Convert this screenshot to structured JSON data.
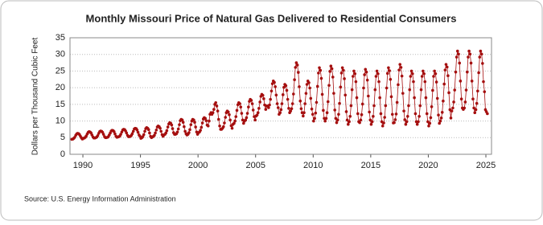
{
  "chart_data": {
    "type": "line",
    "title": "Monthly Missouri Price of Natural Gas Delivered to Residential Consumers",
    "y_label": "Dollars per Thousand Cubic Feet",
    "source": "Source: U.S. Energy Information Administration",
    "xlim": [
      1988.88,
      2025.49
    ],
    "xticks": [
      1990,
      1995,
      2000,
      2005,
      2010,
      2015,
      2020,
      2025
    ],
    "ylim": [
      0,
      35
    ],
    "yticks": [
      0,
      5,
      10,
      15,
      20,
      25,
      30,
      35
    ],
    "grid": true,
    "series": [
      {
        "name": "Missouri residential price",
        "color": "#a50f0f",
        "x": [
          1989.04,
          1989.13,
          1989.21,
          1989.29,
          1989.38,
          1989.46,
          1989.54,
          1989.63,
          1989.71,
          1989.79,
          1989.88,
          1989.96,
          1990.04,
          1990.13,
          1990.21,
          1990.29,
          1990.38,
          1990.46,
          1990.54,
          1990.63,
          1990.71,
          1990.79,
          1990.88,
          1990.96,
          1991.04,
          1991.13,
          1991.21,
          1991.29,
          1991.38,
          1991.46,
          1991.54,
          1991.63,
          1991.71,
          1991.79,
          1991.88,
          1991.96,
          1992.04,
          1992.13,
          1992.21,
          1992.29,
          1992.38,
          1992.46,
          1992.54,
          1992.63,
          1992.71,
          1992.79,
          1992.88,
          1992.96,
          1993.04,
          1993.13,
          1993.21,
          1993.29,
          1993.38,
          1993.46,
          1993.54,
          1993.63,
          1993.71,
          1993.79,
          1993.88,
          1993.96,
          1994.04,
          1994.13,
          1994.21,
          1994.29,
          1994.38,
          1994.46,
          1994.54,
          1994.63,
          1994.71,
          1994.79,
          1994.88,
          1994.96,
          1995.04,
          1995.13,
          1995.21,
          1995.29,
          1995.38,
          1995.46,
          1995.54,
          1995.63,
          1995.71,
          1995.79,
          1995.88,
          1995.96,
          1996.04,
          1996.13,
          1996.21,
          1996.29,
          1996.38,
          1996.46,
          1996.54,
          1996.63,
          1996.71,
          1996.79,
          1996.88,
          1996.96,
          1997.04,
          1997.13,
          1997.21,
          1997.29,
          1997.38,
          1997.46,
          1997.54,
          1997.63,
          1997.71,
          1997.79,
          1997.88,
          1997.96,
          1998.04,
          1998.13,
          1998.21,
          1998.29,
          1998.38,
          1998.46,
          1998.54,
          1998.63,
          1998.71,
          1998.79,
          1998.88,
          1998.96,
          1999.04,
          1999.13,
          1999.21,
          1999.29,
          1999.38,
          1999.46,
          1999.54,
          1999.63,
          1999.71,
          1999.79,
          1999.88,
          1999.96,
          2000.04,
          2000.13,
          2000.21,
          2000.29,
          2000.38,
          2000.46,
          2000.54,
          2000.63,
          2000.71,
          2000.79,
          2000.88,
          2000.96,
          2001.04,
          2001.13,
          2001.21,
          2001.29,
          2001.38,
          2001.46,
          2001.54,
          2001.63,
          2001.71,
          2001.79,
          2001.88,
          2001.96,
          2002.04,
          2002.13,
          2002.21,
          2002.29,
          2002.38,
          2002.46,
          2002.54,
          2002.63,
          2002.71,
          2002.79,
          2002.88,
          2002.96,
          2003.04,
          2003.13,
          2003.21,
          2003.29,
          2003.38,
          2003.46,
          2003.54,
          2003.63,
          2003.71,
          2003.79,
          2003.88,
          2003.96,
          2004.04,
          2004.13,
          2004.21,
          2004.29,
          2004.38,
          2004.46,
          2004.54,
          2004.63,
          2004.71,
          2004.79,
          2004.88,
          2004.96,
          2005.04,
          2005.13,
          2005.21,
          2005.29,
          2005.38,
          2005.46,
          2005.54,
          2005.63,
          2005.71,
          2005.79,
          2005.88,
          2005.96,
          2006.04,
          2006.13,
          2006.21,
          2006.29,
          2006.38,
          2006.46,
          2006.54,
          2006.63,
          2006.71,
          2006.79,
          2006.88,
          2006.96,
          2007.04,
          2007.13,
          2007.21,
          2007.29,
          2007.38,
          2007.46,
          2007.54,
          2007.63,
          2007.71,
          2007.79,
          2007.88,
          2007.96,
          2008.04,
          2008.13,
          2008.21,
          2008.29,
          2008.38,
          2008.46,
          2008.54,
          2008.63,
          2008.71,
          2008.79,
          2008.88,
          2008.96,
          2009.04,
          2009.13,
          2009.21,
          2009.29,
          2009.38,
          2009.46,
          2009.54,
          2009.63,
          2009.71,
          2009.79,
          2009.88,
          2009.96,
          2010.04,
          2010.13,
          2010.21,
          2010.29,
          2010.38,
          2010.46,
          2010.54,
          2010.63,
          2010.71,
          2010.79,
          2010.88,
          2010.96,
          2011.04,
          2011.13,
          2011.21,
          2011.29,
          2011.38,
          2011.46,
          2011.54,
          2011.63,
          2011.71,
          2011.79,
          2011.88,
          2011.96,
          2012.04,
          2012.13,
          2012.21,
          2012.29,
          2012.38,
          2012.46,
          2012.54,
          2012.63,
          2012.71,
          2012.79,
          2012.88,
          2012.96,
          2013.04,
          2013.13,
          2013.21,
          2013.29,
          2013.38,
          2013.46,
          2013.54,
          2013.63,
          2013.71,
          2013.79,
          2013.88,
          2013.96,
          2014.04,
          2014.13,
          2014.21,
          2014.29,
          2014.38,
          2014.46,
          2014.54,
          2014.63,
          2014.71,
          2014.79,
          2014.88,
          2014.96,
          2015.04,
          2015.13,
          2015.21,
          2015.29,
          2015.38,
          2015.46,
          2015.54,
          2015.63,
          2015.71,
          2015.79,
          2015.88,
          2015.96,
          2016.04,
          2016.13,
          2016.21,
          2016.29,
          2016.38,
          2016.46,
          2016.54,
          2016.63,
          2016.71,
          2016.79,
          2016.88,
          2016.96,
          2017.04,
          2017.13,
          2017.21,
          2017.29,
          2017.38,
          2017.46,
          2017.54,
          2017.63,
          2017.71,
          2017.79,
          2017.88,
          2017.96,
          2018.04,
          2018.13,
          2018.21,
          2018.29,
          2018.38,
          2018.46,
          2018.54,
          2018.63,
          2018.71,
          2018.79,
          2018.88,
          2018.96,
          2019.04,
          2019.13,
          2019.21,
          2019.29,
          2019.38,
          2019.46,
          2019.54,
          2019.63,
          2019.71,
          2019.79,
          2019.88,
          2019.96,
          2020.04,
          2020.13,
          2020.21,
          2020.29,
          2020.38,
          2020.46,
          2020.54,
          2020.63,
          2020.71,
          2020.79,
          2020.88,
          2020.96,
          2021.04,
          2021.13,
          2021.21,
          2021.29,
          2021.38,
          2021.46,
          2021.54,
          2021.63,
          2021.71,
          2021.79,
          2021.88,
          2021.96,
          2022.04,
          2022.13,
          2022.21,
          2022.29,
          2022.38,
          2022.46,
          2022.54,
          2022.63,
          2022.71,
          2022.79,
          2022.88,
          2022.96,
          2023.04,
          2023.13,
          2023.21,
          2023.29,
          2023.38,
          2023.46,
          2023.54,
          2023.63,
          2023.71,
          2023.79,
          2023.88,
          2023.96,
          2024.04,
          2024.13,
          2024.21,
          2024.29,
          2024.38,
          2024.46,
          2024.54,
          2024.63,
          2024.71,
          2024.79,
          2024.88,
          2024.96,
          2025.04,
          2025.13
        ],
        "values": [
          4.5,
          4.6,
          4.8,
          5.1,
          5.7,
          6.1,
          6.3,
          6.2,
          5.9,
          5.4,
          4.9,
          4.6,
          4.8,
          4.9,
          5.1,
          5.5,
          6.1,
          6.6,
          6.8,
          6.7,
          6.4,
          5.8,
          5.2,
          4.9,
          4.9,
          5.0,
          5.2,
          5.6,
          6.3,
          6.8,
          7.0,
          6.9,
          6.6,
          6.0,
          5.3,
          5.0,
          5.0,
          5.1,
          5.3,
          5.8,
          6.4,
          7.0,
          7.2,
          7.1,
          6.8,
          6.1,
          5.4,
          5.1,
          5.2,
          5.3,
          5.5,
          6.0,
          6.7,
          7.3,
          7.5,
          7.4,
          7.0,
          6.4,
          5.7,
          5.3,
          5.3,
          5.4,
          5.7,
          6.2,
          6.9,
          7.6,
          7.8,
          7.7,
          7.3,
          6.6,
          5.8,
          5.4,
          4.8,
          5.0,
          5.3,
          5.9,
          6.9,
          7.7,
          8.0,
          7.8,
          7.4,
          6.4,
          5.4,
          5.0,
          5.2,
          5.4,
          5.7,
          6.4,
          7.3,
          8.2,
          8.5,
          8.3,
          7.8,
          6.9,
          5.9,
          5.4,
          5.8,
          6.0,
          6.4,
          7.1,
          8.2,
          9.1,
          9.5,
          9.3,
          8.8,
          7.7,
          6.5,
          6.0,
          6.0,
          6.2,
          6.7,
          7.6,
          8.9,
          10.1,
          10.5,
          10.3,
          9.6,
          8.3,
          6.9,
          6.2,
          5.8,
          6.0,
          6.5,
          7.4,
          8.9,
          10.0,
          10.5,
          10.3,
          9.6,
          8.2,
          6.7,
          6.0,
          6.5,
          6.7,
          7.2,
          8.1,
          9.4,
          10.6,
          11.0,
          10.8,
          10.1,
          8.8,
          8.5,
          10.0,
          12.0,
          12.5,
          12.0,
          12.5,
          13.5,
          15.0,
          15.5,
          14.5,
          13.0,
          10.5,
          8.5,
          7.5,
          7.5,
          7.8,
          8.3,
          9.4,
          11.1,
          12.5,
          13.0,
          12.7,
          11.9,
          10.3,
          8.6,
          7.8,
          9.0,
          9.3,
          10.0,
          11.3,
          13.2,
          14.9,
          15.5,
          15.2,
          14.2,
          12.3,
          10.3,
          9.3,
          10.0,
          10.3,
          11.0,
          12.3,
          14.2,
          15.9,
          16.5,
          16.2,
          15.2,
          13.3,
          11.3,
          10.3,
          11.5,
          11.8,
          12.5,
          13.8,
          15.7,
          17.4,
          18.0,
          17.7,
          16.7,
          14.8,
          13.5,
          14.5,
          14.5,
          14.0,
          14.8,
          16.5,
          19.0,
          21.2,
          22.0,
          21.6,
          20.3,
          17.8,
          15.2,
          14.0,
          12.0,
          12.5,
          13.4,
          15.2,
          17.9,
          20.1,
          21.0,
          20.6,
          19.2,
          16.5,
          13.8,
          12.5,
          13.0,
          13.7,
          15.2,
          18.1,
          22.4,
          26.1,
          27.5,
          26.8,
          24.6,
          20.3,
          16.0,
          13.7,
          12.5,
          11.5,
          12.5,
          15.2,
          18.3,
          21.0,
          22.0,
          21.5,
          19.9,
          16.8,
          13.6,
          12.0,
          10.0,
          10.8,
          12.4,
          15.6,
          20.4,
          24.4,
          26.0,
          25.2,
          22.8,
          18.0,
          13.2,
          10.8,
          10.0,
          10.8,
          12.5,
          15.8,
          20.7,
          24.9,
          26.5,
          25.7,
          23.2,
          18.3,
          13.3,
          10.8,
          9.5,
          10.3,
          12.0,
          15.3,
          20.2,
          24.4,
          26.0,
          25.2,
          22.7,
          17.8,
          12.8,
          10.3,
          9.0,
          9.8,
          11.4,
          14.6,
          19.4,
          23.4,
          25.0,
          24.2,
          21.8,
          17.0,
          12.2,
          9.8,
          9.5,
          10.3,
          11.9,
          15.1,
          19.9,
          23.9,
          25.5,
          24.7,
          22.3,
          17.5,
          12.7,
          10.3,
          9.0,
          9.8,
          11.4,
          14.6,
          19.4,
          23.4,
          25.0,
          24.2,
          21.8,
          17.0,
          12.2,
          9.8,
          8.5,
          9.4,
          11.1,
          14.6,
          19.9,
          24.3,
          26.0,
          25.1,
          22.5,
          17.3,
          12.0,
          9.4,
          9.5,
          10.4,
          12.1,
          15.6,
          20.9,
          25.3,
          27.0,
          26.1,
          23.5,
          18.3,
          13.0,
          10.4,
          9.0,
          9.8,
          11.4,
          14.6,
          19.4,
          23.4,
          25.0,
          24.2,
          21.8,
          17.0,
          12.2,
          9.8,
          9.0,
          9.8,
          11.4,
          14.6,
          19.4,
          23.4,
          25.0,
          24.2,
          21.8,
          17.0,
          12.2,
          9.8,
          8.5,
          9.3,
          11.0,
          14.3,
          19.2,
          23.4,
          25.0,
          24.2,
          21.7,
          16.8,
          11.8,
          9.3,
          10.0,
          10.9,
          12.6,
          16.0,
          21.1,
          25.3,
          27.0,
          26.2,
          23.6,
          18.5,
          13.4,
          10.9,
          13.0,
          13.9,
          15.7,
          19.3,
          24.7,
          29.2,
          31.0,
          30.1,
          27.4,
          22.0,
          16.6,
          13.9,
          13.5,
          13.9,
          15.7,
          19.3,
          24.7,
          29.2,
          31.0,
          30.1,
          27.4,
          22.0,
          16.6,
          13.9,
          12.5,
          13.4,
          15.3,
          19.0,
          24.5,
          29.2,
          31.0,
          30.1,
          27.3,
          21.8,
          18.8,
          13.4,
          12.8,
          12.2
        ]
      }
    ]
  }
}
